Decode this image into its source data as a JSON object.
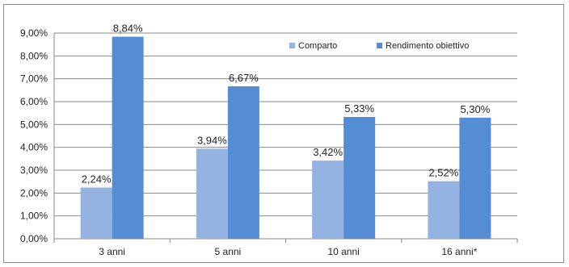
{
  "chart_data": {
    "type": "bar",
    "categories": [
      "3 anni",
      "5 anni",
      "10 anni",
      "16 anni*"
    ],
    "series": [
      {
        "name": "Comparto",
        "values": [
          2.24,
          3.94,
          3.42,
          2.52
        ],
        "color": "#95b3e1"
      },
      {
        "name": "Rendimento obiettivo",
        "values": [
          8.84,
          6.67,
          5.33,
          5.3
        ],
        "color": "#548dd4"
      }
    ],
    "data_labels": [
      [
        "2,24%",
        "3,94%",
        "3,42%",
        "2,52%"
      ],
      [
        "8,84%",
        "6,67%",
        "5,33%",
        "5,30%"
      ]
    ],
    "y_ticks": [
      0,
      1,
      2,
      3,
      4,
      5,
      6,
      7,
      8,
      9
    ],
    "y_tick_labels": [
      "0,00%",
      "1,00%",
      "2,00%",
      "3,00%",
      "4,00%",
      "5,00%",
      "6,00%",
      "7,00%",
      "8,00%",
      "9,00%"
    ],
    "ylim": [
      0,
      9
    ],
    "title": "",
    "xlabel": "",
    "ylabel": "",
    "grid": true,
    "legend_position": "top-right"
  }
}
